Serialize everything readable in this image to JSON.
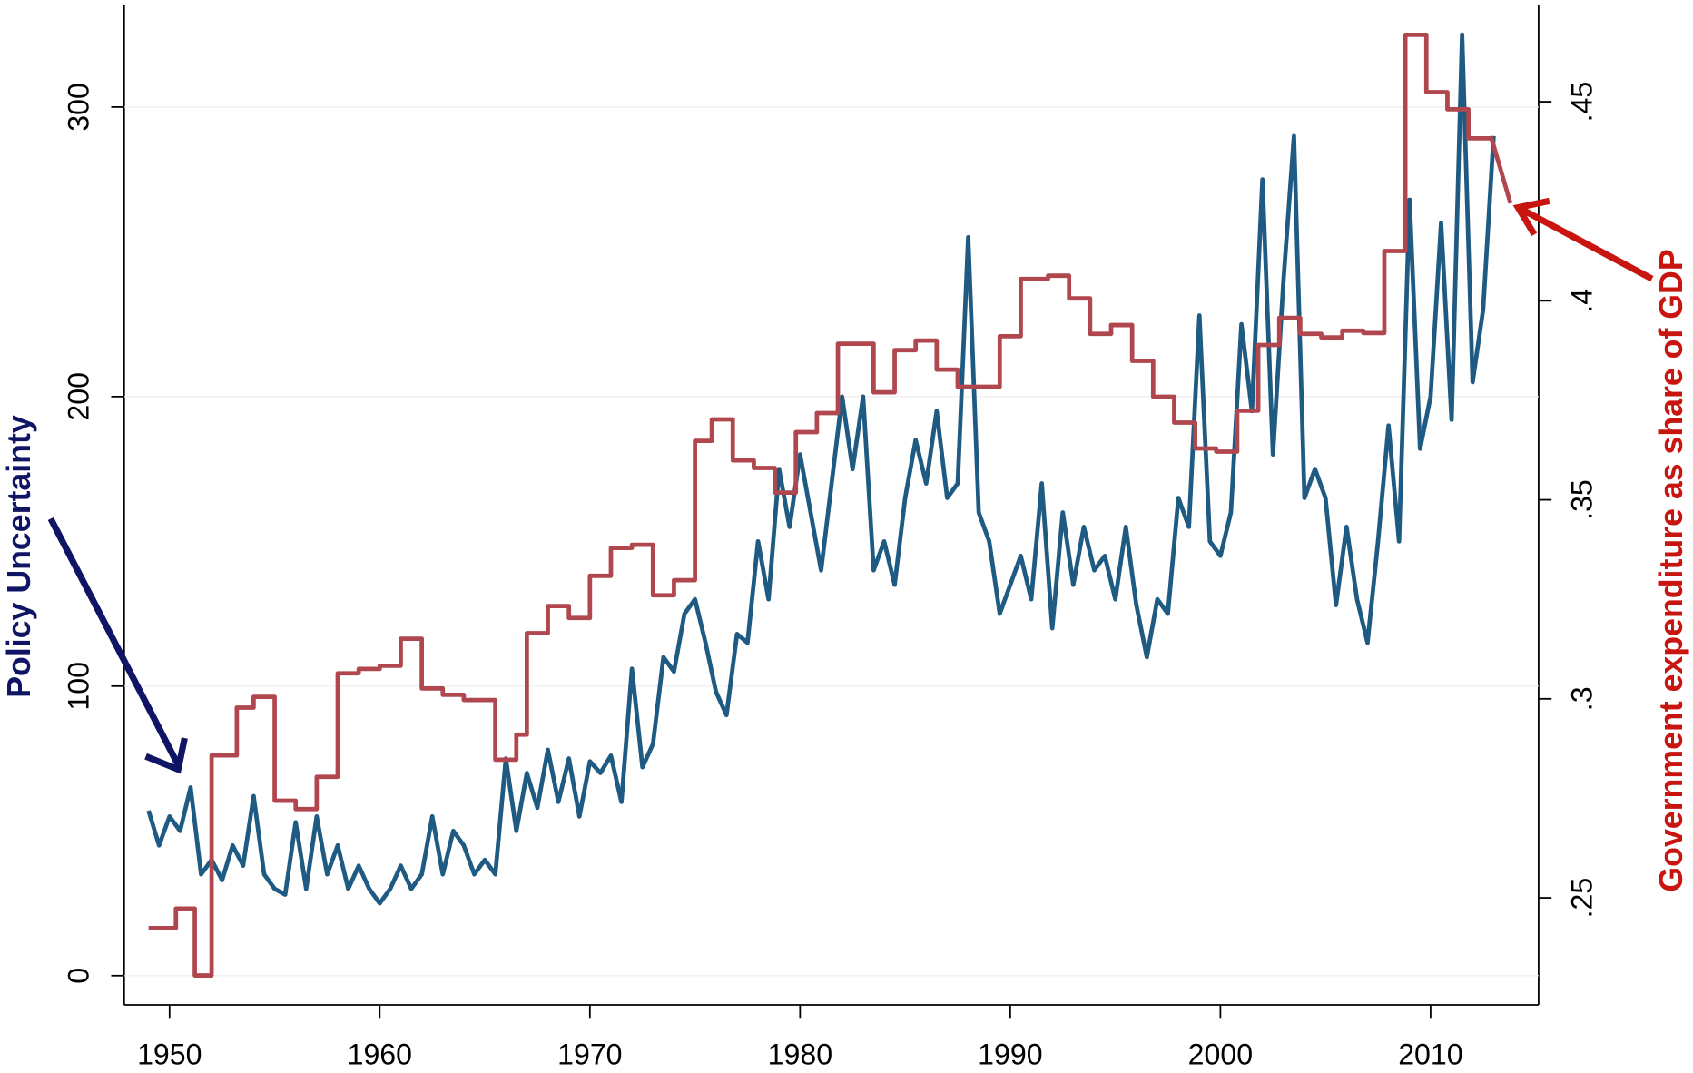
{
  "chart_data": {
    "type": "line",
    "annotations": [
      "Policy Uncertainty",
      "Government expenditure as share of GDP"
    ],
    "xlim": [
      1947.84,
      2015.14
    ],
    "xticks": [
      1950,
      1960,
      1970,
      1980,
      1990,
      2000,
      2010
    ],
    "ylim": [
      -10.1,
      335.1
    ],
    "yticks": [
      0,
      100,
      200,
      300
    ],
    "y2lim": [
      0.2231,
      0.4742
    ],
    "y2ticks": [
      {
        "value": 0.25,
        "label": ".25"
      },
      {
        "value": 0.3,
        "label": ".3"
      },
      {
        "value": 0.35,
        "label": ".35"
      },
      {
        "value": 0.4,
        "label": ".4"
      },
      {
        "value": 0.45,
        "label": ".45"
      }
    ],
    "grid": true,
    "series": [
      {
        "color": "#1f5a82",
        "axis": "y",
        "x": [
          1949.0,
          1949.5,
          1950.0,
          1950.5,
          1951.0,
          1951.5,
          1952.0,
          1952.5,
          1953.0,
          1953.5,
          1954.0,
          1954.5,
          1955.0,
          1955.5,
          1956.0,
          1956.5,
          1957.0,
          1957.5,
          1958.0,
          1958.5,
          1959.0,
          1959.5,
          1960.0,
          1960.5,
          1961.0,
          1961.5,
          1962.0,
          1962.5,
          1963.0,
          1963.5,
          1964.0,
          1964.5,
          1965.0,
          1965.5,
          1966.0,
          1966.5,
          1967.0,
          1967.5,
          1968.0,
          1968.5,
          1969.0,
          1969.5,
          1970.0,
          1970.5,
          1971.0,
          1971.5,
          1972.0,
          1972.5,
          1973.0,
          1973.5,
          1974.0,
          1974.5,
          1975.0,
          1975.5,
          1976.0,
          1976.5,
          1977.0,
          1977.5,
          1978.0,
          1978.5,
          1979.0,
          1979.5,
          1980.0,
          1980.5,
          1981.0,
          1981.5,
          1982.0,
          1982.5,
          1983.0,
          1983.5,
          1984.0,
          1984.5,
          1985.0,
          1985.5,
          1986.0,
          1986.5,
          1987.0,
          1987.5,
          1988.0,
          1988.5,
          1989.0,
          1989.5,
          1990.0,
          1990.5,
          1991.0,
          1991.5,
          1992.0,
          1992.5,
          1993.0,
          1993.5,
          1994.0,
          1994.5,
          1995.0,
          1995.5,
          1996.0,
          1996.5,
          1997.0,
          1997.5,
          1998.0,
          1998.5,
          1999.0,
          1999.5,
          2000.0,
          2000.5,
          2001.0,
          2001.5,
          2002.0,
          2002.5,
          2003.0,
          2003.5,
          2004.0,
          2004.5,
          2005.0,
          2005.5,
          2006.0,
          2006.5,
          2007.0,
          2007.5,
          2008.0,
          2008.5,
          2009.0,
          2009.5,
          2010.0,
          2010.5,
          2011.0,
          2011.5,
          2012.0,
          2012.5,
          2013.0
        ],
        "values": [
          57,
          45,
          55,
          50,
          65,
          35,
          40,
          33,
          45,
          38,
          62,
          35,
          30,
          28,
          53,
          30,
          55,
          35,
          45,
          30,
          38,
          30,
          25,
          30,
          38,
          30,
          35,
          55,
          35,
          50,
          45,
          35,
          40,
          35,
          75,
          50,
          70,
          58,
          78,
          60,
          75,
          55,
          74,
          70,
          76,
          60,
          106,
          72,
          80,
          110,
          105,
          125,
          130,
          115,
          98,
          90,
          118,
          115,
          150,
          130,
          175,
          155,
          180,
          160,
          140,
          170,
          200,
          175,
          200,
          140,
          150,
          135,
          165,
          185,
          170,
          195,
          165,
          170,
          255,
          160,
          150,
          125,
          135,
          145,
          130,
          170,
          120,
          160,
          135,
          155,
          140,
          145,
          130,
          155,
          128,
          110,
          130,
          125,
          165,
          155,
          228,
          150,
          145,
          160,
          225,
          195,
          275,
          180,
          240,
          290,
          165,
          175,
          165,
          128,
          155,
          130,
          115,
          150,
          190,
          150,
          268,
          182,
          200,
          260,
          192,
          325,
          205,
          230,
          290
        ]
      },
      {
        "color": "#b0474e",
        "axis": "y2",
        "x": [
          1949.0,
          1950.3,
          1951.2,
          1952.0,
          1953.2,
          1954.0,
          1955.0,
          1956.0,
          1957.0,
          1958.0,
          1959.0,
          1960.0,
          1961.0,
          1962.0,
          1963.0,
          1964.0,
          1965.5,
          1966.5,
          1967.0,
          1968.0,
          1969.0,
          1970.0,
          1971.0,
          1972.0,
          1973.0,
          1974.0,
          1975.0,
          1975.8,
          1976.8,
          1977.8,
          1978.8,
          1979.8,
          1980.8,
          1981.8,
          1983.5,
          1984.5,
          1985.5,
          1986.5,
          1987.5,
          1989.5,
          1990.5,
          1991.8,
          1992.8,
          1993.8,
          1994.8,
          1995.8,
          1996.8,
          1997.8,
          1998.8,
          1999.8,
          2000.8,
          2001.8,
          2002.8,
          2003.8,
          2004.8,
          2005.8,
          2006.8,
          2007.8,
          2008.8,
          2009.8,
          2010.8,
          2011.8,
          2012.9,
          2013.8
        ],
        "values": [
          0.2424,
          0.2473,
          0.2305,
          0.2858,
          0.2978,
          0.3005,
          0.2744,
          0.2723,
          0.2804,
          0.3064,
          0.3075,
          0.3083,
          0.3151,
          0.3026,
          0.301,
          0.2997,
          0.2847,
          0.291,
          0.3165,
          0.3233,
          0.3203,
          0.3309,
          0.3379,
          0.3387,
          0.326,
          0.3298,
          0.3648,
          0.3702,
          0.3599,
          0.358,
          0.3518,
          0.367,
          0.3718,
          0.3892,
          0.377,
          0.3876,
          0.39,
          0.3827,
          0.3784,
          0.3911,
          0.4055,
          0.4063,
          0.4006,
          0.3917,
          0.3939,
          0.3849,
          0.3759,
          0.3694,
          0.3629,
          0.3621,
          0.3724,
          0.3889,
          0.3957,
          0.3917,
          0.3908,
          0.3925,
          0.3919,
          0.4125,
          0.4668,
          0.4524,
          0.4481,
          0.4408,
          0.4408,
          0.4245
        ]
      }
    ]
  }
}
